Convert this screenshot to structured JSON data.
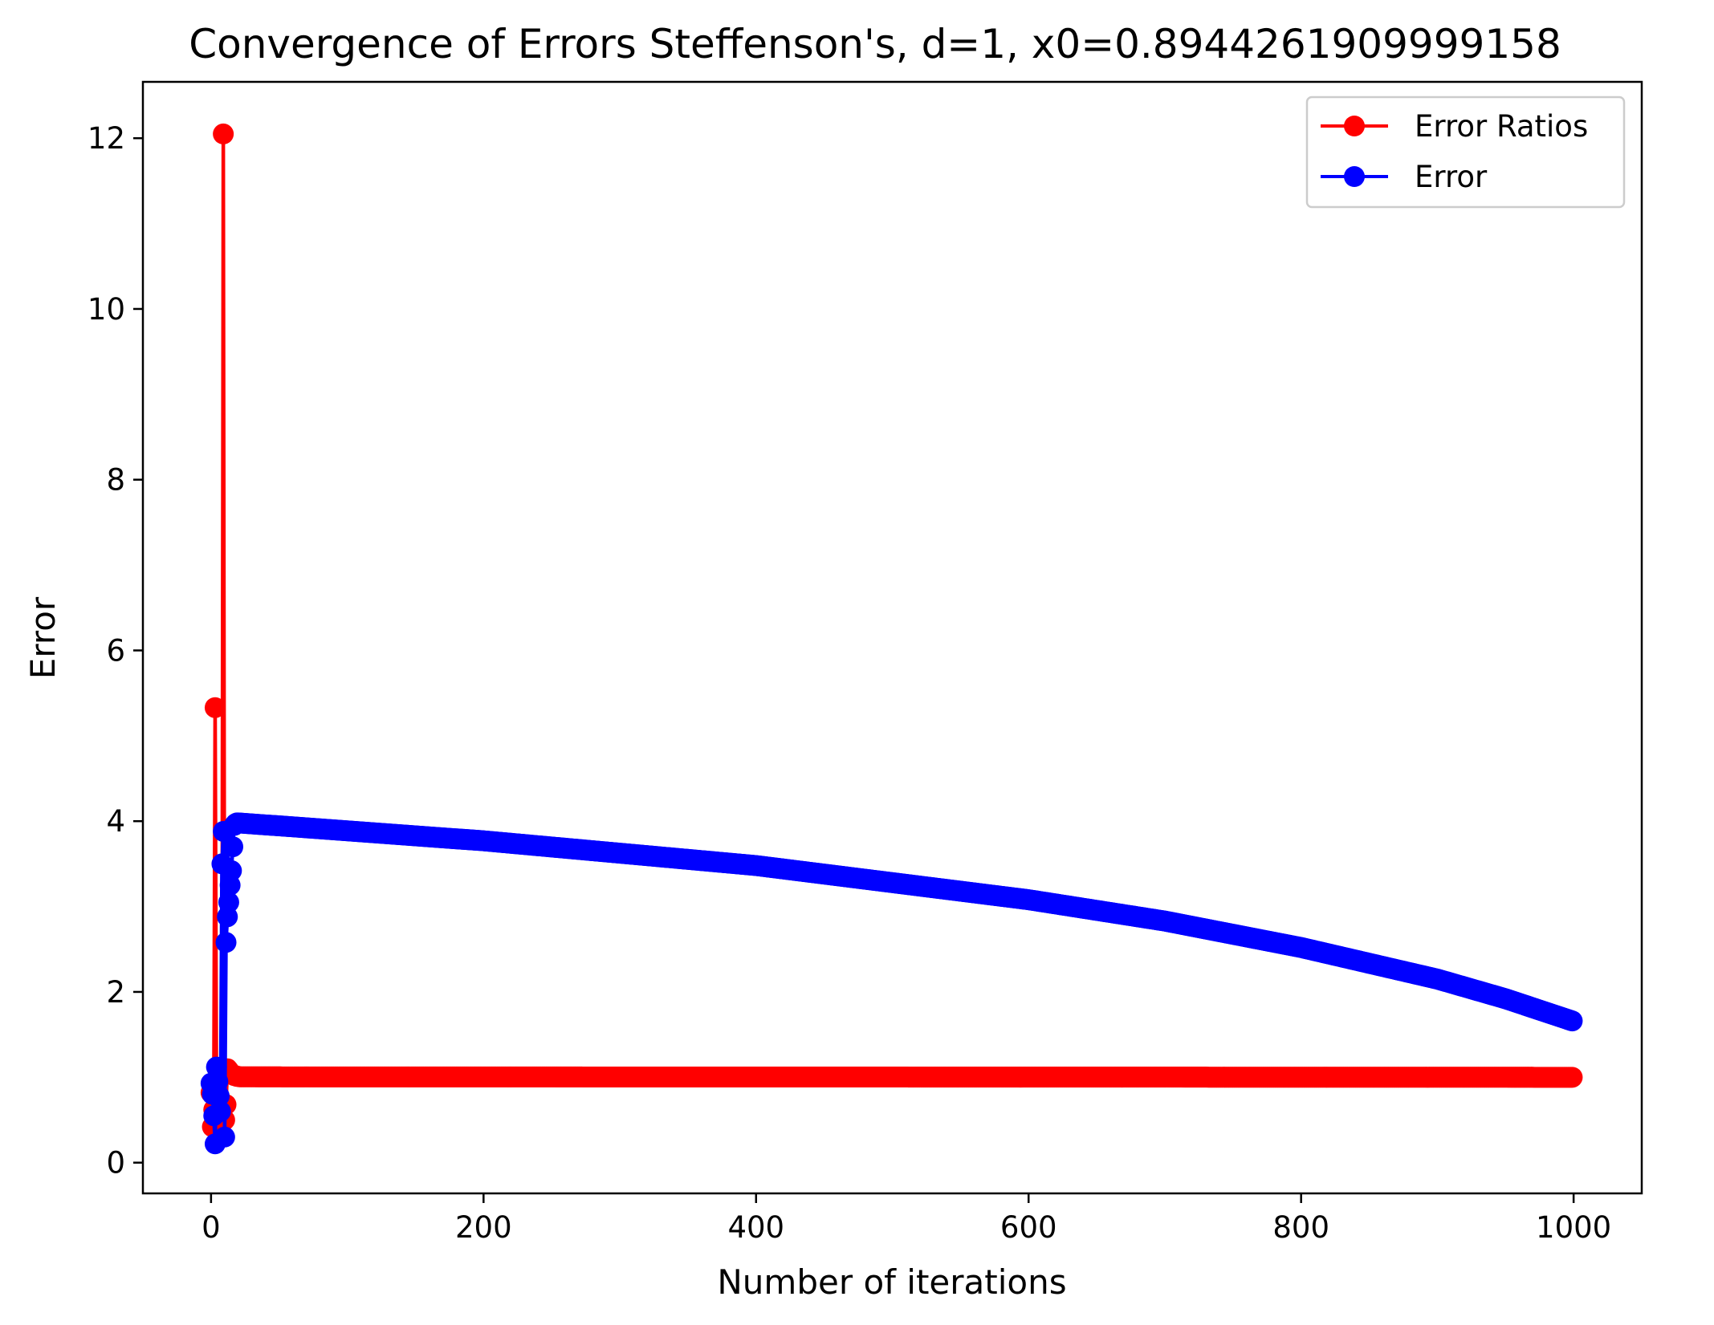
{
  "chart_data": {
    "type": "line",
    "title": "Convergence of Errors Steffenson's, d=1, x0=0.8944261909999158",
    "xlabel": "Number of iterations",
    "ylabel": "Error",
    "xlim": [
      -50,
      1050
    ],
    "ylim": [
      -0.36,
      12.66
    ],
    "xticks": [
      0,
      200,
      400,
      600,
      800,
      1000
    ],
    "yticks": [
      0,
      2,
      4,
      6,
      8,
      10,
      12
    ],
    "xtick_labels": [
      "0",
      "200",
      "400",
      "600",
      "800",
      "1000"
    ],
    "ytick_labels": [
      "0",
      "2",
      "4",
      "6",
      "8",
      "10",
      "12"
    ],
    "grid": false,
    "legend_position": "top-right",
    "marker": "circle",
    "series": [
      {
        "name": "Error Ratios",
        "color": "#ff0000",
        "early_points": [
          [
            0,
            0.82
          ],
          [
            1,
            0.42
          ],
          [
            2,
            0.62
          ],
          [
            3,
            5.33
          ],
          [
            4,
            0.85
          ],
          [
            5,
            0.55
          ],
          [
            6,
            0.75
          ],
          [
            7,
            1.05
          ],
          [
            8,
            0.62
          ],
          [
            9,
            12.05
          ],
          [
            10,
            0.5
          ],
          [
            11,
            0.68
          ],
          [
            12,
            1.1
          ],
          [
            13,
            1.08
          ],
          [
            14,
            1.05
          ],
          [
            15,
            1.04
          ],
          [
            16,
            1.03
          ],
          [
            17,
            1.02
          ],
          [
            18,
            1.02
          ],
          [
            19,
            1.01
          ],
          [
            20,
            1.01
          ]
        ],
        "trend": {
          "from": 21,
          "to": 999,
          "y_start": 1.005,
          "y_end": 1.0
        }
      },
      {
        "name": "Error",
        "color": "#0000ff",
        "early_points": [
          [
            0,
            0.93
          ],
          [
            1,
            0.8
          ],
          [
            2,
            0.55
          ],
          [
            3,
            0.22
          ],
          [
            4,
            1.12
          ],
          [
            5,
            0.95
          ],
          [
            6,
            0.78
          ],
          [
            7,
            0.6
          ],
          [
            8,
            3.5
          ],
          [
            9,
            3.88
          ],
          [
            10,
            0.3
          ],
          [
            11,
            2.58
          ],
          [
            12,
            2.88
          ],
          [
            13,
            3.05
          ],
          [
            14,
            3.25
          ],
          [
            15,
            3.42
          ],
          [
            16,
            3.7
          ],
          [
            17,
            3.95
          ],
          [
            18,
            3.97
          ],
          [
            19,
            3.98
          ],
          [
            20,
            3.98
          ]
        ],
        "trend": {
          "from": 21,
          "to": 999,
          "points": [
            [
              20,
              3.98
            ],
            [
              200,
              3.77
            ],
            [
              400,
              3.48
            ],
            [
              600,
              3.08
            ],
            [
              700,
              2.83
            ],
            [
              800,
              2.52
            ],
            [
              900,
              2.15
            ],
            [
              950,
              1.92
            ],
            [
              999,
              1.66
            ]
          ]
        }
      }
    ]
  }
}
